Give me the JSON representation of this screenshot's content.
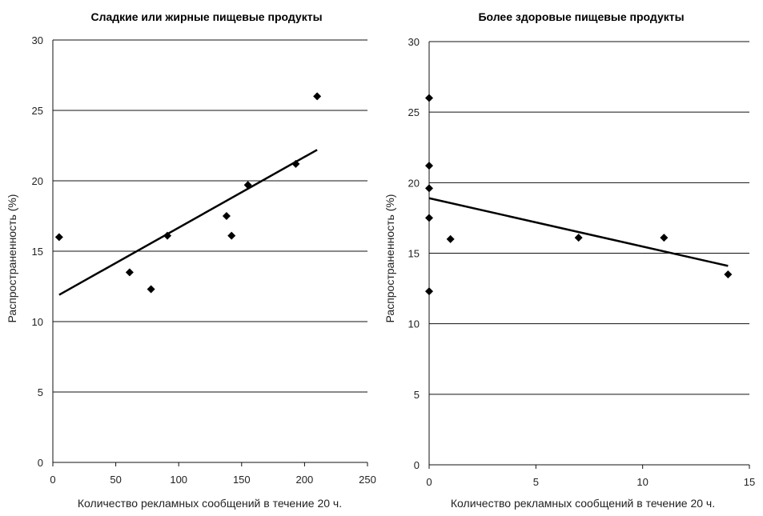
{
  "chart_data": [
    {
      "type": "scatter",
      "title": "Сладкие или жирные пищевые продукты",
      "xlabel": "Количество рекламных сообщений в течение 20 ч.",
      "ylabel": "Распространенность (%)",
      "xlim": [
        0,
        250
      ],
      "ylim": [
        0,
        30
      ],
      "xticks": [
        0,
        50,
        100,
        150,
        200,
        250
      ],
      "yticks": [
        0,
        5,
        10,
        15,
        20,
        25,
        30
      ],
      "grid": "horizontal",
      "points": [
        {
          "x": 5,
          "y": 16.0
        },
        {
          "x": 61,
          "y": 13.5
        },
        {
          "x": 78,
          "y": 12.3
        },
        {
          "x": 91,
          "y": 16.1
        },
        {
          "x": 138,
          "y": 17.5
        },
        {
          "x": 142,
          "y": 16.1
        },
        {
          "x": 155,
          "y": 19.7
        },
        {
          "x": 193,
          "y": 21.2
        },
        {
          "x": 210,
          "y": 26.0
        }
      ],
      "trendline": {
        "x": [
          5,
          210
        ],
        "y": [
          11.9,
          22.2
        ]
      }
    },
    {
      "type": "scatter",
      "title": "Более здоровые пищевые продукты",
      "xlabel": "Количество рекламных сообщений в течение 20 ч.",
      "ylabel": "Распространенность (%)",
      "xlim": [
        0,
        15
      ],
      "ylim": [
        0,
        30
      ],
      "xticks": [
        0,
        5,
        10,
        15
      ],
      "yticks": [
        0,
        5,
        10,
        15,
        20,
        25,
        30
      ],
      "grid": "horizontal",
      "points": [
        {
          "x": 0,
          "y": 26.0
        },
        {
          "x": 0,
          "y": 21.2
        },
        {
          "x": 0,
          "y": 19.6
        },
        {
          "x": 0,
          "y": 17.5
        },
        {
          "x": 0,
          "y": 12.3
        },
        {
          "x": 1,
          "y": 16.0
        },
        {
          "x": 7,
          "y": 16.1
        },
        {
          "x": 11,
          "y": 16.1
        },
        {
          "x": 14,
          "y": 13.5
        }
      ],
      "trendline": {
        "x": [
          0,
          14
        ],
        "y": [
          18.9,
          14.1
        ]
      }
    }
  ]
}
